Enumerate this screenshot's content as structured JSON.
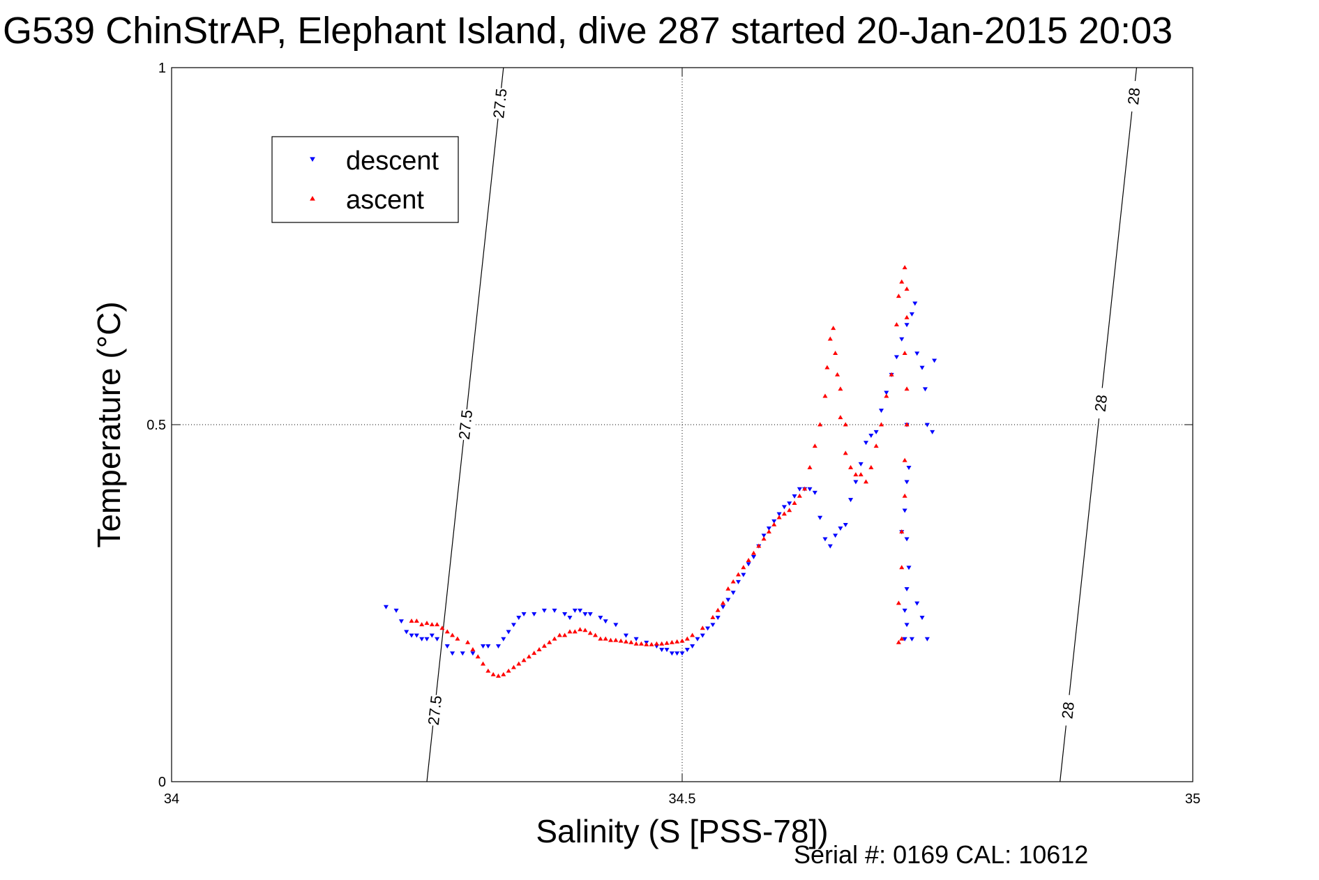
{
  "chart_data": {
    "type": "scatter",
    "title": "G539 ChinStrAP, Elephant Island, dive 287 started 20-Jan-2015 20:03",
    "xlabel": "Salinity (S [PSS-78])",
    "ylabel": "Temperature (°C)",
    "xlim": [
      34,
      35
    ],
    "ylim": [
      0,
      1
    ],
    "x_ticks": [
      34,
      34.5,
      35
    ],
    "x_tick_labels": [
      "34",
      "34.5",
      "35"
    ],
    "y_ticks": [
      0,
      0.5,
      1
    ],
    "y_tick_labels": [
      "0",
      "0.5",
      "1"
    ],
    "grid": true,
    "legend_position": "top-left",
    "footer": "Serial #: 0169 CAL: 10612",
    "isopycnals": [
      {
        "label": "27.5",
        "x_at_bottom": 34.25,
        "x_at_top": 34.325,
        "label_positions": [
          [
            34.265,
            0.1
          ],
          [
            34.285,
            0.5
          ],
          [
            34.32,
            0.95
          ]
        ]
      },
      {
        "label": "28",
        "x_at_bottom": 34.87,
        "x_at_top": 34.945,
        "label_positions": [
          [
            34.885,
            0.1
          ],
          [
            34.905,
            0.53
          ],
          [
            34.94,
            0.96
          ]
        ]
      }
    ],
    "series": [
      {
        "name": "descent",
        "color": "#0000ff",
        "marker": "triangle-down",
        "points": [
          [
            34.21,
            0.245
          ],
          [
            34.22,
            0.24
          ],
          [
            34.225,
            0.225
          ],
          [
            34.23,
            0.21
          ],
          [
            34.235,
            0.205
          ],
          [
            34.24,
            0.205
          ],
          [
            34.245,
            0.2
          ],
          [
            34.25,
            0.2
          ],
          [
            34.255,
            0.205
          ],
          [
            34.26,
            0.2
          ],
          [
            34.27,
            0.19
          ],
          [
            34.275,
            0.18
          ],
          [
            34.285,
            0.18
          ],
          [
            34.295,
            0.18
          ],
          [
            34.305,
            0.19
          ],
          [
            34.31,
            0.19
          ],
          [
            34.32,
            0.19
          ],
          [
            34.325,
            0.2
          ],
          [
            34.33,
            0.21
          ],
          [
            34.335,
            0.22
          ],
          [
            34.34,
            0.23
          ],
          [
            34.345,
            0.235
          ],
          [
            34.355,
            0.235
          ],
          [
            34.365,
            0.24
          ],
          [
            34.375,
            0.24
          ],
          [
            34.385,
            0.235
          ],
          [
            34.39,
            0.23
          ],
          [
            34.395,
            0.24
          ],
          [
            34.4,
            0.24
          ],
          [
            34.405,
            0.235
          ],
          [
            34.41,
            0.235
          ],
          [
            34.42,
            0.23
          ],
          [
            34.425,
            0.225
          ],
          [
            34.435,
            0.22
          ],
          [
            34.445,
            0.205
          ],
          [
            34.455,
            0.2
          ],
          [
            34.465,
            0.195
          ],
          [
            34.475,
            0.19
          ],
          [
            34.48,
            0.185
          ],
          [
            34.485,
            0.185
          ],
          [
            34.49,
            0.18
          ],
          [
            34.495,
            0.18
          ],
          [
            34.5,
            0.18
          ],
          [
            34.505,
            0.185
          ],
          [
            34.51,
            0.19
          ],
          [
            34.515,
            0.2
          ],
          [
            34.52,
            0.205
          ],
          [
            34.525,
            0.215
          ],
          [
            34.53,
            0.22
          ],
          [
            34.535,
            0.23
          ],
          [
            34.54,
            0.245
          ],
          [
            34.545,
            0.255
          ],
          [
            34.55,
            0.265
          ],
          [
            34.555,
            0.28
          ],
          [
            34.56,
            0.29
          ],
          [
            34.565,
            0.305
          ],
          [
            34.57,
            0.315
          ],
          [
            34.575,
            0.33
          ],
          [
            34.58,
            0.345
          ],
          [
            34.585,
            0.355
          ],
          [
            34.59,
            0.365
          ],
          [
            34.595,
            0.375
          ],
          [
            34.6,
            0.385
          ],
          [
            34.605,
            0.39
          ],
          [
            34.61,
            0.4
          ],
          [
            34.615,
            0.41
          ],
          [
            34.62,
            0.41
          ],
          [
            34.625,
            0.41
          ],
          [
            34.63,
            0.405
          ],
          [
            34.635,
            0.37
          ],
          [
            34.64,
            0.34
          ],
          [
            34.645,
            0.33
          ],
          [
            34.65,
            0.345
          ],
          [
            34.655,
            0.355
          ],
          [
            34.66,
            0.36
          ],
          [
            34.665,
            0.395
          ],
          [
            34.67,
            0.42
          ],
          [
            34.675,
            0.445
          ],
          [
            34.68,
            0.475
          ],
          [
            34.685,
            0.485
          ],
          [
            34.69,
            0.49
          ],
          [
            34.695,
            0.52
          ],
          [
            34.7,
            0.545
          ],
          [
            34.705,
            0.57
          ],
          [
            34.71,
            0.595
          ],
          [
            34.715,
            0.62
          ],
          [
            34.72,
            0.64
          ],
          [
            34.725,
            0.655
          ],
          [
            34.728,
            0.67
          ],
          [
            34.73,
            0.6
          ],
          [
            34.735,
            0.58
          ],
          [
            34.738,
            0.55
          ],
          [
            34.74,
            0.5
          ],
          [
            34.745,
            0.49
          ],
          [
            34.747,
            0.59
          ],
          [
            34.72,
            0.5
          ],
          [
            34.722,
            0.44
          ],
          [
            34.72,
            0.42
          ],
          [
            34.718,
            0.38
          ],
          [
            34.72,
            0.34
          ],
          [
            34.722,
            0.3
          ],
          [
            34.72,
            0.27
          ],
          [
            34.718,
            0.24
          ],
          [
            34.72,
            0.22
          ],
          [
            34.718,
            0.2
          ],
          [
            34.725,
            0.2
          ],
          [
            34.73,
            0.25
          ],
          [
            34.735,
            0.23
          ],
          [
            34.74,
            0.2
          ],
          [
            34.715,
            0.35
          ]
        ]
      },
      {
        "name": "ascent",
        "color": "#ff0000",
        "marker": "triangle-up",
        "points": [
          [
            34.235,
            0.225
          ],
          [
            34.24,
            0.225
          ],
          [
            34.245,
            0.22
          ],
          [
            34.25,
            0.222
          ],
          [
            34.255,
            0.22
          ],
          [
            34.26,
            0.22
          ],
          [
            34.265,
            0.215
          ],
          [
            34.27,
            0.21
          ],
          [
            34.275,
            0.205
          ],
          [
            34.28,
            0.2
          ],
          [
            34.29,
            0.195
          ],
          [
            34.295,
            0.185
          ],
          [
            34.3,
            0.175
          ],
          [
            34.305,
            0.165
          ],
          [
            34.31,
            0.155
          ],
          [
            34.315,
            0.15
          ],
          [
            34.32,
            0.148
          ],
          [
            34.325,
            0.15
          ],
          [
            34.33,
            0.155
          ],
          [
            34.335,
            0.16
          ],
          [
            34.34,
            0.165
          ],
          [
            34.345,
            0.17
          ],
          [
            34.35,
            0.175
          ],
          [
            34.355,
            0.18
          ],
          [
            34.36,
            0.185
          ],
          [
            34.365,
            0.19
          ],
          [
            34.37,
            0.195
          ],
          [
            34.375,
            0.2
          ],
          [
            34.38,
            0.205
          ],
          [
            34.385,
            0.205
          ],
          [
            34.39,
            0.21
          ],
          [
            34.395,
            0.21
          ],
          [
            34.4,
            0.213
          ],
          [
            34.405,
            0.212
          ],
          [
            34.41,
            0.208
          ],
          [
            34.415,
            0.205
          ],
          [
            34.42,
            0.2
          ],
          [
            34.425,
            0.2
          ],
          [
            34.43,
            0.198
          ],
          [
            34.435,
            0.198
          ],
          [
            34.44,
            0.197
          ],
          [
            34.445,
            0.196
          ],
          [
            34.45,
            0.195
          ],
          [
            34.455,
            0.193
          ],
          [
            34.46,
            0.193
          ],
          [
            34.465,
            0.192
          ],
          [
            34.47,
            0.192
          ],
          [
            34.475,
            0.193
          ],
          [
            34.48,
            0.193
          ],
          [
            34.485,
            0.194
          ],
          [
            34.49,
            0.195
          ],
          [
            34.495,
            0.196
          ],
          [
            34.5,
            0.197
          ],
          [
            34.505,
            0.2
          ],
          [
            34.51,
            0.205
          ],
          [
            34.52,
            0.215
          ],
          [
            34.53,
            0.23
          ],
          [
            34.535,
            0.24
          ],
          [
            34.54,
            0.25
          ],
          [
            34.545,
            0.27
          ],
          [
            34.55,
            0.28
          ],
          [
            34.555,
            0.29
          ],
          [
            34.56,
            0.3
          ],
          [
            34.565,
            0.31
          ],
          [
            34.57,
            0.32
          ],
          [
            34.575,
            0.33
          ],
          [
            34.58,
            0.34
          ],
          [
            34.585,
            0.35
          ],
          [
            34.59,
            0.36
          ],
          [
            34.595,
            0.37
          ],
          [
            34.6,
            0.375
          ],
          [
            34.605,
            0.38
          ],
          [
            34.61,
            0.39
          ],
          [
            34.615,
            0.4
          ],
          [
            34.62,
            0.41
          ],
          [
            34.625,
            0.44
          ],
          [
            34.63,
            0.47
          ],
          [
            34.635,
            0.5
          ],
          [
            34.64,
            0.54
          ],
          [
            34.642,
            0.58
          ],
          [
            34.645,
            0.62
          ],
          [
            34.648,
            0.635
          ],
          [
            34.65,
            0.6
          ],
          [
            34.652,
            0.57
          ],
          [
            34.655,
            0.55
          ],
          [
            34.655,
            0.51
          ],
          [
            34.66,
            0.5
          ],
          [
            34.66,
            0.46
          ],
          [
            34.665,
            0.44
          ],
          [
            34.67,
            0.43
          ],
          [
            34.675,
            0.43
          ],
          [
            34.68,
            0.42
          ],
          [
            34.685,
            0.44
          ],
          [
            34.69,
            0.47
          ],
          [
            34.695,
            0.5
          ],
          [
            34.7,
            0.54
          ],
          [
            34.705,
            0.57
          ],
          [
            34.71,
            0.64
          ],
          [
            34.712,
            0.68
          ],
          [
            34.715,
            0.7
          ],
          [
            34.718,
            0.72
          ],
          [
            34.72,
            0.69
          ],
          [
            34.72,
            0.65
          ],
          [
            34.718,
            0.6
          ],
          [
            34.72,
            0.55
          ],
          [
            34.72,
            0.5
          ],
          [
            34.718,
            0.45
          ],
          [
            34.718,
            0.4
          ],
          [
            34.715,
            0.35
          ],
          [
            34.715,
            0.3
          ],
          [
            34.712,
            0.25
          ],
          [
            34.715,
            0.2
          ],
          [
            34.712,
            0.195
          ]
        ]
      }
    ]
  }
}
